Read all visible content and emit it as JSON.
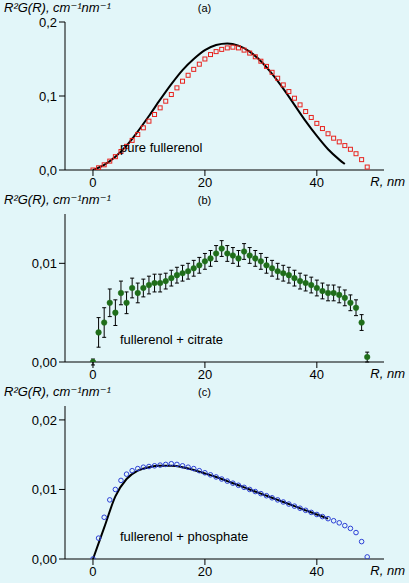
{
  "chart_data": [
    {
      "type": "scatter",
      "title": "(a)",
      "y_label": "R²G(R), cm⁻¹nm⁻¹",
      "x_label": "R, nm",
      "annotation": "pure fullerenol",
      "xlim": [
        -5,
        52
      ],
      "xticks": [
        0,
        20,
        40
      ],
      "ylim": [
        0,
        0.2
      ],
      "yticks": [
        {
          "value": 0,
          "label": "0,0"
        },
        {
          "value": 0.1,
          "label": "0,1"
        },
        {
          "value": 0.2,
          "label": "0,2"
        }
      ],
      "series": [
        {
          "type": "scatter",
          "color": "#e8231e",
          "marker": "square",
          "x": [
            0,
            1,
            2,
            3,
            4,
            5,
            6,
            7,
            8,
            9,
            10,
            11,
            12,
            13,
            14,
            15,
            16,
            17,
            18,
            19,
            20,
            21,
            22,
            23,
            24,
            25,
            26,
            27,
            28,
            29,
            30,
            31,
            32,
            33,
            34,
            35,
            36,
            37,
            38,
            39,
            40,
            41,
            42,
            43,
            44,
            45,
            46,
            47,
            48,
            49
          ],
          "values": [
            0.0,
            0.003,
            0.007,
            0.012,
            0.018,
            0.025,
            0.032,
            0.04,
            0.048,
            0.057,
            0.066,
            0.075,
            0.084,
            0.093,
            0.102,
            0.111,
            0.12,
            0.128,
            0.136,
            0.143,
            0.15,
            0.156,
            0.16,
            0.163,
            0.165,
            0.166,
            0.165,
            0.162,
            0.158,
            0.153,
            0.147,
            0.14,
            0.132,
            0.124,
            0.115,
            0.106,
            0.097,
            0.088,
            0.079,
            0.071,
            0.063,
            0.056,
            0.049,
            0.043,
            0.038,
            0.033,
            0.028,
            0.022,
            0.014,
            0.004
          ]
        },
        {
          "type": "line",
          "color": "#000000",
          "x": [
            0,
            2,
            4,
            6,
            8,
            10,
            12,
            14,
            16,
            18,
            20,
            22,
            24,
            26,
            28,
            30,
            32,
            34,
            36,
            38,
            40,
            42,
            44,
            45
          ],
          "values": [
            0,
            0.007,
            0.018,
            0.033,
            0.052,
            0.073,
            0.095,
            0.116,
            0.135,
            0.15,
            0.162,
            0.169,
            0.171,
            0.168,
            0.16,
            0.147,
            0.13,
            0.11,
            0.088,
            0.066,
            0.046,
            0.028,
            0.014,
            0.008
          ]
        }
      ]
    },
    {
      "type": "scatter",
      "title": "(b)",
      "y_label": "R²G(R), cm⁻¹nm⁻¹",
      "x_label": "R, nm",
      "annotation": "fullerenol + citrate",
      "xlim": [
        -5,
        52
      ],
      "xticks": [
        0,
        20,
        40
      ],
      "ylim": [
        0,
        0.015
      ],
      "yticks": [
        {
          "value": 0,
          "label": "0,00"
        },
        {
          "value": 0.01,
          "label": "0,01"
        }
      ],
      "series": [
        {
          "type": "scatter",
          "color": "#1f6e1a",
          "marker": "circle",
          "x": [
            0,
            1,
            2,
            3,
            4,
            5,
            6,
            7,
            8,
            9,
            10,
            11,
            12,
            13,
            14,
            15,
            16,
            17,
            18,
            19,
            20,
            21,
            22,
            23,
            24,
            25,
            26,
            27,
            28,
            29,
            30,
            31,
            32,
            33,
            34,
            35,
            36,
            37,
            38,
            39,
            40,
            41,
            42,
            43,
            44,
            45,
            46,
            47,
            48,
            49
          ],
          "values": [
            0.0,
            0.003,
            0.004,
            0.006,
            0.005,
            0.007,
            0.006,
            0.0075,
            0.007,
            0.0075,
            0.0078,
            0.008,
            0.008,
            0.0082,
            0.0085,
            0.0088,
            0.009,
            0.0092,
            0.0095,
            0.0098,
            0.0102,
            0.0105,
            0.011,
            0.0115,
            0.011,
            0.0108,
            0.0105,
            0.0112,
            0.0108,
            0.0105,
            0.0102,
            0.0098,
            0.0095,
            0.0092,
            0.009,
            0.0088,
            0.0085,
            0.0082,
            0.008,
            0.0078,
            0.0075,
            0.0072,
            0.007,
            0.007,
            0.0068,
            0.0065,
            0.006,
            0.0055,
            0.004,
            0.0005
          ],
          "errors": [
            0.0003,
            0.0015,
            0.0015,
            0.0014,
            0.0013,
            0.0012,
            0.0011,
            0.001,
            0.001,
            0.0009,
            0.0009,
            0.0009,
            0.0009,
            0.0008,
            0.0008,
            0.0008,
            0.0008,
            0.0008,
            0.0008,
            0.0008,
            0.0008,
            0.0008,
            0.0008,
            0.0008,
            0.0008,
            0.0008,
            0.0008,
            0.0008,
            0.0008,
            0.0008,
            0.0008,
            0.0008,
            0.0008,
            0.0008,
            0.0008,
            0.0008,
            0.0008,
            0.0008,
            0.0008,
            0.0008,
            0.0008,
            0.0008,
            0.0008,
            0.0008,
            0.0008,
            0.0008,
            0.0008,
            0.0008,
            0.0008,
            0.0005
          ]
        }
      ]
    },
    {
      "type": "scatter",
      "title": "(c)",
      "y_label": "R²G(R), cm⁻¹nm⁻¹",
      "x_label": "R, nm",
      "annotation": "fullerenol + phosphate",
      "xlim": [
        -5,
        52
      ],
      "xticks": [
        0,
        20,
        40
      ],
      "ylim": [
        0,
        0.022
      ],
      "yticks": [
        {
          "value": 0,
          "label": "0,00"
        },
        {
          "value": 0.01,
          "label": "0,01"
        },
        {
          "value": 0.02,
          "label": "0,02"
        }
      ],
      "series": [
        {
          "type": "scatter",
          "color": "#2b3fd6",
          "marker": "circle_open",
          "x": [
            0,
            1,
            2,
            3,
            4,
            5,
            6,
            7,
            8,
            9,
            10,
            11,
            12,
            13,
            14,
            15,
            16,
            17,
            18,
            19,
            20,
            21,
            22,
            23,
            24,
            25,
            26,
            27,
            28,
            29,
            30,
            31,
            32,
            33,
            34,
            35,
            36,
            37,
            38,
            39,
            40,
            41,
            42,
            43,
            44,
            45,
            46,
            47,
            48,
            49
          ],
          "values": [
            0.0,
            0.003,
            0.006,
            0.0085,
            0.01,
            0.0113,
            0.0122,
            0.0127,
            0.013,
            0.0132,
            0.0133,
            0.0134,
            0.0135,
            0.0136,
            0.0137,
            0.0136,
            0.0134,
            0.0132,
            0.013,
            0.0127,
            0.0124,
            0.0121,
            0.0118,
            0.0115,
            0.0112,
            0.0109,
            0.0106,
            0.0103,
            0.01,
            0.0097,
            0.0094,
            0.0091,
            0.0088,
            0.0085,
            0.0082,
            0.0079,
            0.0076,
            0.0073,
            0.007,
            0.0067,
            0.0064,
            0.0061,
            0.0058,
            0.0055,
            0.0052,
            0.0048,
            0.0044,
            0.0038,
            0.0025,
            0.0003
          ]
        },
        {
          "type": "line",
          "color": "#000000",
          "x": [
            0,
            2,
            4,
            6,
            8,
            10,
            12,
            14,
            16,
            18,
            20,
            22,
            24,
            26,
            28,
            30,
            32,
            34,
            36,
            38,
            40,
            42
          ],
          "values": [
            0,
            0.0045,
            0.009,
            0.0115,
            0.0127,
            0.0132,
            0.0134,
            0.0134,
            0.0132,
            0.0128,
            0.0123,
            0.0118,
            0.0112,
            0.0106,
            0.01,
            0.0094,
            0.0088,
            0.0082,
            0.0076,
            0.007,
            0.0064,
            0.0058
          ]
        }
      ]
    }
  ]
}
